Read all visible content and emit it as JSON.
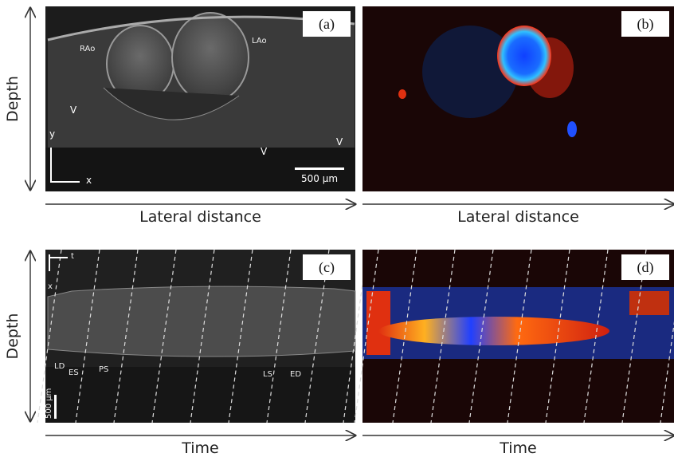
{
  "rows": [
    {
      "y_label": "Depth",
      "panels": [
        {
          "label": "(a)",
          "x_label": "Lateral distance",
          "annotations": [
            "RAo",
            "LAo",
            "V",
            "V",
            "V",
            "y",
            "x",
            "500 µm"
          ]
        },
        {
          "label": "(b)",
          "x_label": "Lateral distance",
          "annotations": []
        }
      ]
    },
    {
      "y_label": "Depth",
      "panels": [
        {
          "label": "(c)",
          "x_label": "Time",
          "annotations": [
            "t",
            "x",
            "LD",
            "ES",
            "PS",
            "LS",
            "ED",
            "500 µm"
          ]
        },
        {
          "label": "(d)",
          "x_label": "Time",
          "annotations": []
        }
      ]
    }
  ]
}
